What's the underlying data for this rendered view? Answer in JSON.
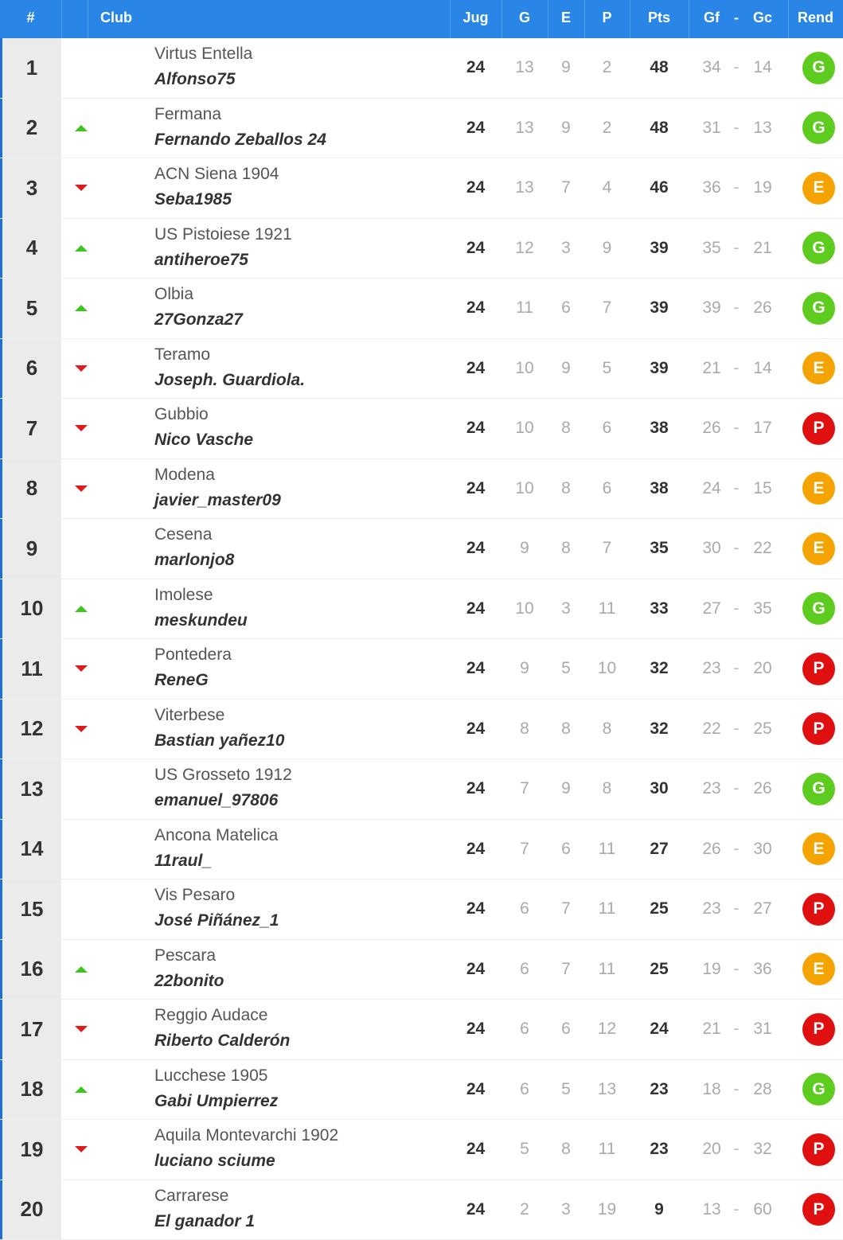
{
  "header": {
    "pos": "#",
    "club": "Club",
    "jug": "Jug",
    "g": "G",
    "e": "E",
    "p": "P",
    "pts": "Pts",
    "gf": "Gf",
    "dash": "-",
    "gc": "Gc",
    "rend": "Rend"
  },
  "colors": {
    "header_bg": "#2a86e6",
    "trend_up": "#3ec61f",
    "trend_down": "#e01919",
    "badge_G": "#5ecb1f",
    "badge_E": "#f5a300",
    "badge_P": "#e01010"
  },
  "rows": [
    {
      "pos": "1",
      "trend": "none",
      "club": "Virtus Entella",
      "manager": "Alfonso75",
      "jug": "24",
      "g": "13",
      "e": "9",
      "p": "2",
      "pts": "48",
      "gf": "34",
      "gc": "14",
      "rend": "G"
    },
    {
      "pos": "2",
      "trend": "up",
      "club": "Fermana",
      "manager": "Fernando Zeballos 24",
      "jug": "24",
      "g": "13",
      "e": "9",
      "p": "2",
      "pts": "48",
      "gf": "31",
      "gc": "13",
      "rend": "G"
    },
    {
      "pos": "3",
      "trend": "down",
      "club": "ACN Siena 1904",
      "manager": "Seba1985",
      "jug": "24",
      "g": "13",
      "e": "7",
      "p": "4",
      "pts": "46",
      "gf": "36",
      "gc": "19",
      "rend": "E"
    },
    {
      "pos": "4",
      "trend": "up",
      "club": "US Pistoiese 1921",
      "manager": "antiheroe75",
      "jug": "24",
      "g": "12",
      "e": "3",
      "p": "9",
      "pts": "39",
      "gf": "35",
      "gc": "21",
      "rend": "G"
    },
    {
      "pos": "5",
      "trend": "up",
      "club": "Olbia",
      "manager": "27Gonza27",
      "jug": "24",
      "g": "11",
      "e": "6",
      "p": "7",
      "pts": "39",
      "gf": "39",
      "gc": "26",
      "rend": "G"
    },
    {
      "pos": "6",
      "trend": "down",
      "club": "Teramo",
      "manager": "Joseph. Guardiola.",
      "jug": "24",
      "g": "10",
      "e": "9",
      "p": "5",
      "pts": "39",
      "gf": "21",
      "gc": "14",
      "rend": "E"
    },
    {
      "pos": "7",
      "trend": "down",
      "club": "Gubbio",
      "manager": "Nico Vasche",
      "jug": "24",
      "g": "10",
      "e": "8",
      "p": "6",
      "pts": "38",
      "gf": "26",
      "gc": "17",
      "rend": "P"
    },
    {
      "pos": "8",
      "trend": "down",
      "club": "Modena",
      "manager": "javier_master09",
      "jug": "24",
      "g": "10",
      "e": "8",
      "p": "6",
      "pts": "38",
      "gf": "24",
      "gc": "15",
      "rend": "E"
    },
    {
      "pos": "9",
      "trend": "none",
      "club": "Cesena",
      "manager": "marlonjo8",
      "jug": "24",
      "g": "9",
      "e": "8",
      "p": "7",
      "pts": "35",
      "gf": "30",
      "gc": "22",
      "rend": "E"
    },
    {
      "pos": "10",
      "trend": "up",
      "club": "Imolese",
      "manager": "meskundeu",
      "jug": "24",
      "g": "10",
      "e": "3",
      "p": "11",
      "pts": "33",
      "gf": "27",
      "gc": "35",
      "rend": "G"
    },
    {
      "pos": "11",
      "trend": "down",
      "club": "Pontedera",
      "manager": "ReneG",
      "jug": "24",
      "g": "9",
      "e": "5",
      "p": "10",
      "pts": "32",
      "gf": "23",
      "gc": "20",
      "rend": "P"
    },
    {
      "pos": "12",
      "trend": "down",
      "club": "Viterbese",
      "manager": "Bastian yañez10",
      "jug": "24",
      "g": "8",
      "e": "8",
      "p": "8",
      "pts": "32",
      "gf": "22",
      "gc": "25",
      "rend": "P"
    },
    {
      "pos": "13",
      "trend": "none",
      "club": "US Grosseto 1912",
      "manager": "emanuel_97806",
      "jug": "24",
      "g": "7",
      "e": "9",
      "p": "8",
      "pts": "30",
      "gf": "23",
      "gc": "26",
      "rend": "G"
    },
    {
      "pos": "14",
      "trend": "none",
      "club": "Ancona Matelica",
      "manager": "11raul_",
      "jug": "24",
      "g": "7",
      "e": "6",
      "p": "11",
      "pts": "27",
      "gf": "26",
      "gc": "30",
      "rend": "E"
    },
    {
      "pos": "15",
      "trend": "none",
      "club": "Vis Pesaro",
      "manager": "José Piñánez_1",
      "jug": "24",
      "g": "6",
      "e": "7",
      "p": "11",
      "pts": "25",
      "gf": "23",
      "gc": "27",
      "rend": "P"
    },
    {
      "pos": "16",
      "trend": "up",
      "club": "Pescara",
      "manager": "22bonito",
      "jug": "24",
      "g": "6",
      "e": "7",
      "p": "11",
      "pts": "25",
      "gf": "19",
      "gc": "36",
      "rend": "E"
    },
    {
      "pos": "17",
      "trend": "down",
      "club": "Reggio Audace",
      "manager": "Riberto Calderón",
      "jug": "24",
      "g": "6",
      "e": "6",
      "p": "12",
      "pts": "24",
      "gf": "21",
      "gc": "31",
      "rend": "P"
    },
    {
      "pos": "18",
      "trend": "up",
      "club": "Lucchese 1905",
      "manager": "Gabi Umpierrez",
      "jug": "24",
      "g": "6",
      "e": "5",
      "p": "13",
      "pts": "23",
      "gf": "18",
      "gc": "28",
      "rend": "G"
    },
    {
      "pos": "19",
      "trend": "down",
      "club": "Aquila Montevarchi 1902",
      "manager": "luciano sciume",
      "jug": "24",
      "g": "5",
      "e": "8",
      "p": "11",
      "pts": "23",
      "gf": "20",
      "gc": "32",
      "rend": "P"
    },
    {
      "pos": "20",
      "trend": "none",
      "club": "Carrarese",
      "manager": "El ganador 1",
      "jug": "24",
      "g": "2",
      "e": "3",
      "p": "19",
      "pts": "9",
      "gf": "13",
      "gc": "60",
      "rend": "P"
    }
  ]
}
